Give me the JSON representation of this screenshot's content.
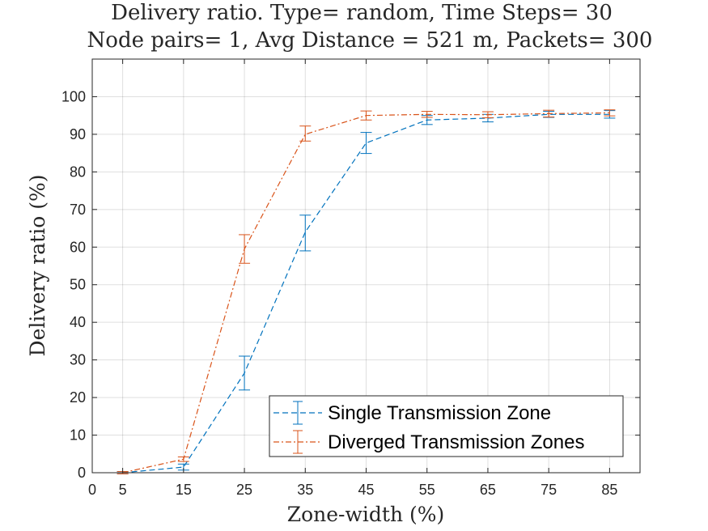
{
  "chart_data": {
    "type": "line",
    "title_line1": "Delivery ratio. Type= random, Time Steps= 30",
    "title_line2": "Node pairs= 1, Avg Distance = 521 m, Packets= 300",
    "xlabel": "Zone-width (%)",
    "ylabel": "Delivery ratio (%)",
    "xlim": [
      0,
      90
    ],
    "ylim": [
      0,
      110
    ],
    "x_ticks": [
      0,
      5,
      15,
      25,
      35,
      45,
      55,
      65,
      75,
      85
    ],
    "y_ticks": [
      0,
      10,
      20,
      30,
      40,
      50,
      60,
      70,
      80,
      90,
      100
    ],
    "grid": true,
    "legend_position": "bottom-right",
    "x": [
      5,
      15,
      25,
      35,
      45,
      55,
      65,
      75,
      85
    ],
    "series": [
      {
        "name": "Single Transmission Zone",
        "color": "#0072BD",
        "dash": "dashed",
        "values": [
          0,
          1.5,
          26.5,
          64,
          87.7,
          93.8,
          94.3,
          95.3,
          95.3
        ],
        "err_low": [
          0.3,
          0.8,
          4.5,
          5,
          2.8,
          1.2,
          1,
          0.8,
          1
        ],
        "err_high": [
          0.3,
          0.8,
          4.5,
          4.5,
          2.8,
          1.2,
          1,
          0.8,
          1
        ]
      },
      {
        "name": "Diverged Transmission Zones",
        "color": "#D95319",
        "dash": "dash-dot",
        "values": [
          0,
          3.6,
          59.5,
          90,
          95,
          95.3,
          95.2,
          95.5,
          95.7
        ],
        "err_low": [
          0.3,
          0.6,
          3.8,
          1.8,
          1.2,
          0.8,
          0.8,
          0.9,
          0.8
        ],
        "err_high": [
          0.3,
          0.6,
          3.8,
          2.2,
          1.2,
          0.8,
          0.8,
          0.9,
          0.8
        ]
      }
    ]
  }
}
